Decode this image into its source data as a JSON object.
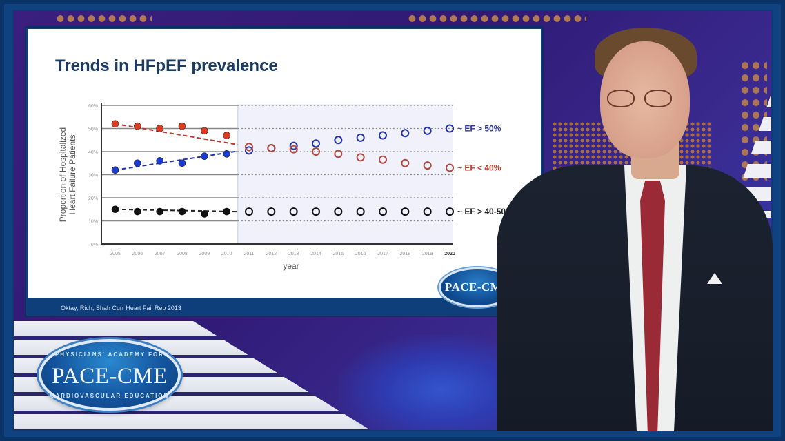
{
  "slide": {
    "title": "Trends in HFpEF prevalence",
    "citation": "Oktay, Rich, Shah Curr Heart Fail Rep 2013",
    "logo_text": "PACE-CME"
  },
  "branding": {
    "logo_text": "PACE-CME",
    "logo_arc_top": "PHYSICIANS' ACADEMY FOR",
    "logo_arc_bottom": "CARDIOVASCULAR EDUCATION"
  },
  "chart_data": {
    "type": "scatter",
    "title": "Trends in HFpEF prevalence",
    "xlabel": "year",
    "ylabel": "Proportion of Hospitalized Heart Failure Patients",
    "ylim": [
      0,
      60
    ],
    "yticks": [
      "0%",
      "10%",
      "20%",
      "30%",
      "40%",
      "50%",
      "60%"
    ],
    "categories": [
      "2005",
      "2006",
      "2007",
      "2008",
      "2009",
      "2010",
      "2011",
      "2012",
      "2013",
      "2014",
      "2015",
      "2016",
      "2017",
      "2018",
      "2019",
      "2020"
    ],
    "observed_range": [
      "2005",
      "2010"
    ],
    "projected_range": [
      "2011",
      "2020"
    ],
    "grid": true,
    "series": [
      {
        "name": "~ EF > 50%",
        "color": "#2233aa",
        "observed": [
          32,
          35,
          36,
          35,
          38,
          39
        ],
        "projected": [
          40.5,
          41.5,
          42.5,
          43.5,
          45,
          46,
          47,
          48,
          49,
          50
        ]
      },
      {
        "name": "~ EF < 40%",
        "color": "#cc2a1e",
        "observed": [
          52,
          51,
          50,
          51,
          49,
          47
        ],
        "projected": [
          42,
          41.5,
          41,
          40,
          39,
          37.5,
          36.5,
          35,
          34,
          33
        ]
      },
      {
        "name": "~ EF > 40-50%",
        "color": "#111111",
        "observed": [
          15,
          14,
          14,
          14,
          13,
          14
        ],
        "projected": [
          14,
          14,
          14,
          14,
          14,
          14,
          14,
          14,
          14,
          14
        ]
      }
    ],
    "legend_position": "right-inline"
  }
}
